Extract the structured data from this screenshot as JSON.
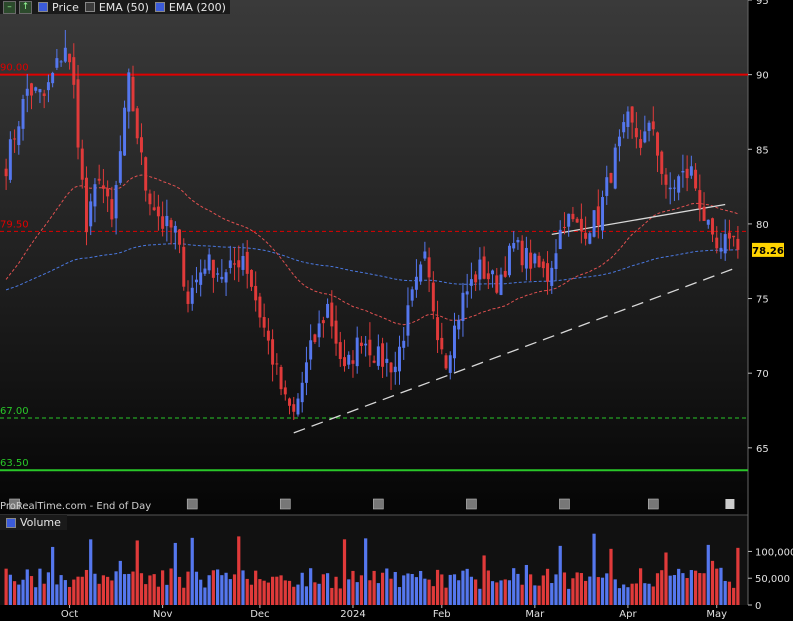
{
  "legend": {
    "price_label": "Price",
    "ema50_label": "EMA (50)",
    "ema200_label": "EMA (200)"
  },
  "footer": {
    "source": "ProRealTime.com - End of Day"
  },
  "volume_panel": {
    "label": "Volume"
  },
  "colors": {
    "up": "#5577ee",
    "down": "#e03a3a",
    "ema50": "#e05050",
    "ema200": "#4a78e0",
    "resistance": "#e00000",
    "support": "#29c729",
    "current_price_tag": "#ffd400"
  },
  "chart_data": {
    "type": "candlestick",
    "price_axis": {
      "ticks": [
        65,
        70,
        75,
        80,
        85,
        90,
        95
      ],
      "range": [
        60.5,
        95
      ]
    },
    "volume_axis": {
      "ticks": [
        0,
        50000,
        100000
      ],
      "tick_labels": [
        "0",
        "50,000",
        "100,000"
      ],
      "range": [
        0,
        140000
      ]
    },
    "x_labels": [
      "Oct",
      "Nov",
      "Dec",
      "2024",
      "Feb",
      "Mar",
      "Apr",
      "May"
    ],
    "current_price": 78.26,
    "current_price_label": "78.26",
    "levels": [
      {
        "value": 90.0,
        "label": "90.00",
        "style": "solid",
        "color": "#e00000"
      },
      {
        "value": 79.5,
        "label": "79.50",
        "style": "dashed",
        "color": "#e00000"
      },
      {
        "value": 67.0,
        "label": "67.00",
        "style": "dashed",
        "color": "#29c729"
      },
      {
        "value": 63.5,
        "label": "63.50",
        "style": "solid",
        "color": "#29c729"
      }
    ],
    "trendlines": [
      {
        "name": "rising-support",
        "from": {
          "idx": 68,
          "price": 66.0
        },
        "to": {
          "idx": 172,
          "price": 77.0
        },
        "style": "dashed",
        "color": "#d8d8d8"
      },
      {
        "name": "upper-trendline",
        "from": {
          "idx": 129,
          "price": 79.3
        },
        "to": {
          "idx": 170,
          "price": 81.3
        },
        "style": "solid",
        "color": "#d8d8d8"
      }
    ],
    "anchors": [
      [
        0,
        84.0
      ],
      [
        5,
        89.0
      ],
      [
        9,
        88.5
      ],
      [
        14,
        92.0
      ],
      [
        16,
        89.0
      ],
      [
        19,
        79.5
      ],
      [
        22,
        83.5
      ],
      [
        25,
        80.0
      ],
      [
        29,
        89.5
      ],
      [
        33,
        82.5
      ],
      [
        37,
        80.0
      ],
      [
        40,
        79.5
      ],
      [
        43,
        75.0
      ],
      [
        47,
        77.5
      ],
      [
        52,
        76.5
      ],
      [
        56,
        78.0
      ],
      [
        60,
        74.0
      ],
      [
        63,
        71.0
      ],
      [
        66,
        68.0
      ],
      [
        68,
        67.2
      ],
      [
        72,
        71.5
      ],
      [
        76,
        74.5
      ],
      [
        80,
        70.0
      ],
      [
        84,
        72.5
      ],
      [
        88,
        71.0
      ],
      [
        92,
        70.5
      ],
      [
        96,
        75.0
      ],
      [
        99,
        77.5
      ],
      [
        102,
        73.0
      ],
      [
        104,
        71.0
      ],
      [
        108,
        75.0
      ],
      [
        112,
        77.0
      ],
      [
        116,
        76.0
      ],
      [
        120,
        78.5
      ],
      [
        124,
        77.5
      ],
      [
        128,
        76.5
      ],
      [
        132,
        80.5
      ],
      [
        136,
        79.5
      ],
      [
        140,
        80.5
      ],
      [
        144,
        84.5
      ],
      [
        147,
        86.8
      ],
      [
        150,
        85.5
      ],
      [
        153,
        86.5
      ],
      [
        156,
        82.0
      ],
      [
        159,
        83.0
      ],
      [
        162,
        83.5
      ],
      [
        165,
        80.5
      ],
      [
        167,
        78.5
      ],
      [
        169,
        77.8
      ],
      [
        171,
        79.5
      ],
      [
        173,
        78.26
      ]
    ]
  }
}
